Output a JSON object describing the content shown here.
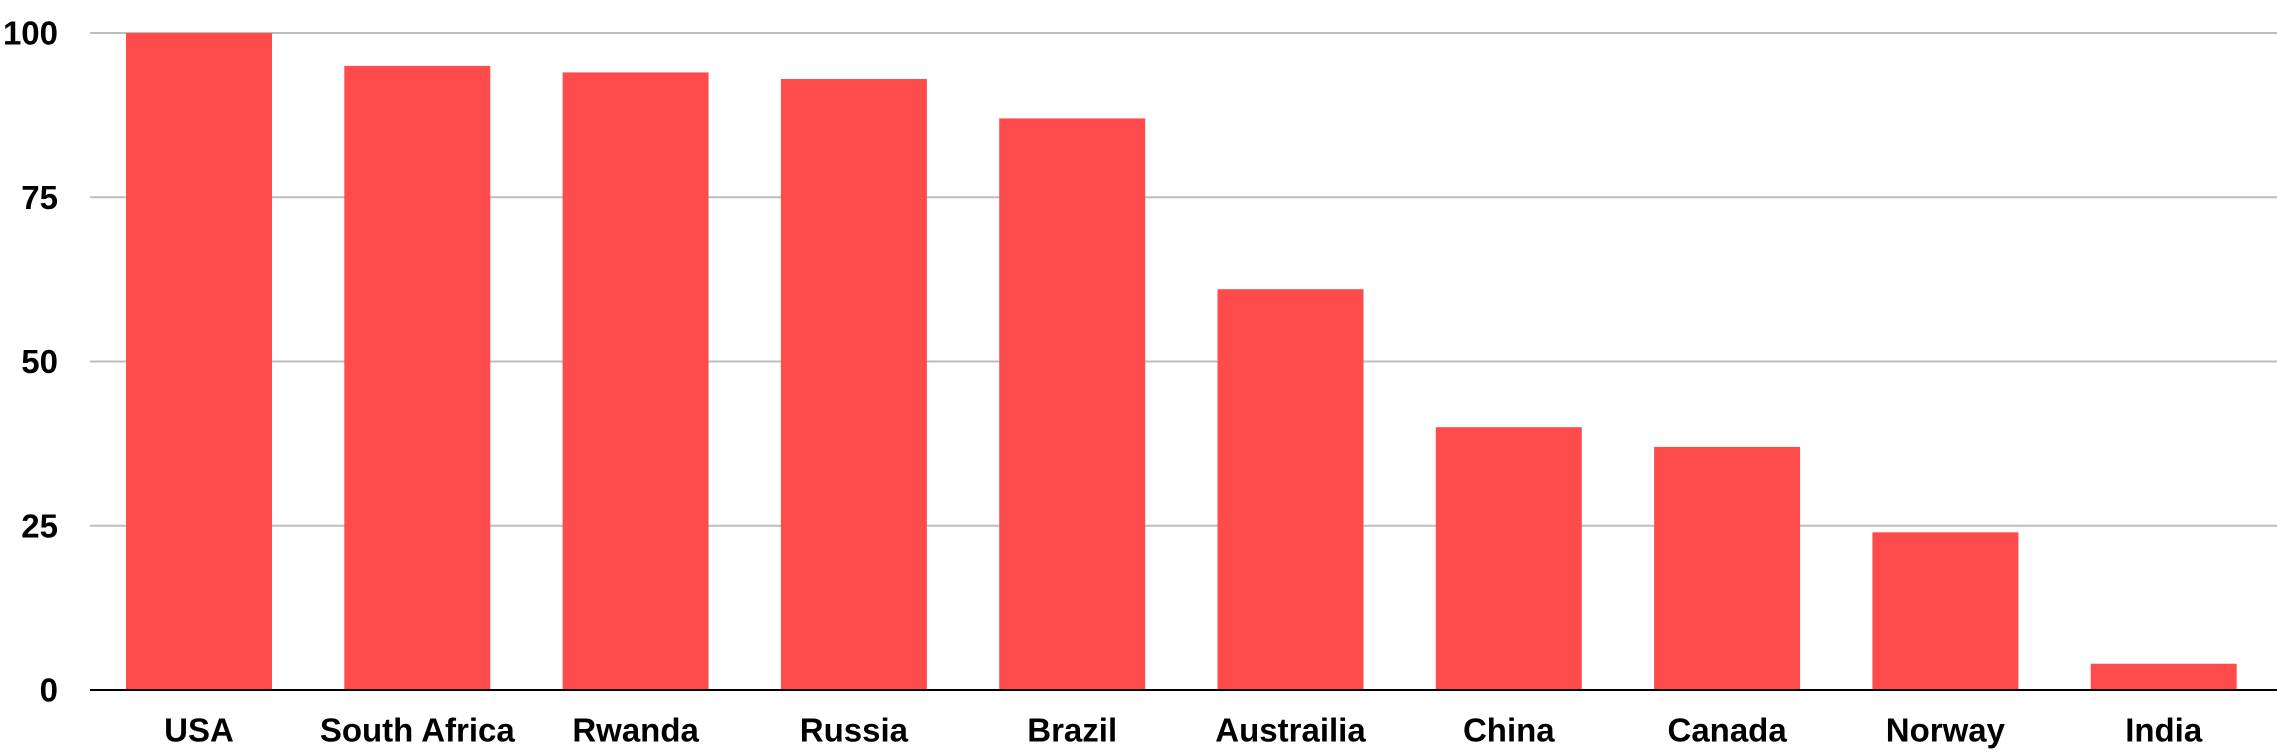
{
  "chart_data": {
    "type": "bar",
    "categories": [
      "USA",
      "South Africa",
      "Rwanda",
      "Russia",
      "Brazil",
      "Austrailia",
      "China",
      "Canada",
      "Norway",
      "India"
    ],
    "values": [
      100,
      95,
      94,
      93,
      87,
      61,
      40,
      37,
      24,
      4
    ],
    "title": "",
    "xlabel": "",
    "ylabel": "",
    "ylim": [
      0,
      100
    ],
    "yticks": [
      0,
      25,
      50,
      75,
      100
    ],
    "grid": true,
    "legend": "none",
    "colors": {
      "bar": "#fe4c4c",
      "gridline": "#bdbdbd",
      "axis": "#000000",
      "text": "#000000"
    }
  }
}
